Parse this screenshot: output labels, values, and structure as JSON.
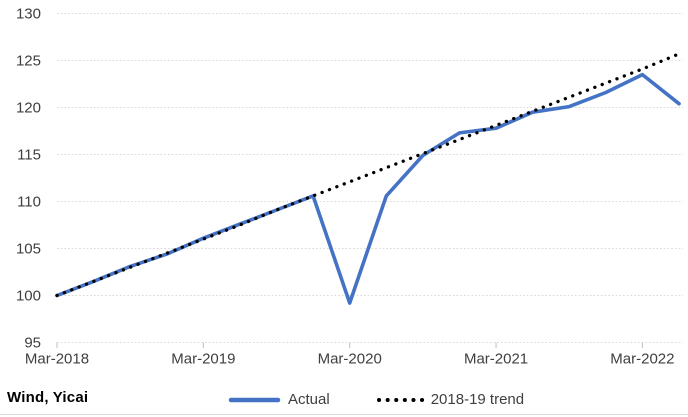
{
  "source": {
    "label": "Wind, Yicai"
  },
  "legend": {
    "actual_label": "Actual",
    "trend_label": "2018-19 trend"
  },
  "colors": {
    "actual": "#4472C4",
    "trend": "#000000",
    "gridline": "#D9D9D9",
    "tick_mark": "#BFBFBF",
    "axis_text": "#3F3F3F"
  },
  "chart_data": {
    "type": "line",
    "x": [
      "Mar-2018",
      "Jun-2018",
      "Sep-2018",
      "Dec-2018",
      "Mar-2019",
      "Jun-2019",
      "Sep-2019",
      "Dec-2019",
      "Mar-2020",
      "Jun-2020",
      "Sep-2020",
      "Dec-2020",
      "Mar-2021",
      "Jun-2021",
      "Sep-2021",
      "Dec-2021",
      "Mar-2022",
      "Jun-2022"
    ],
    "series": [
      {
        "name": "Actual",
        "color": "#4472C4",
        "style": "solid",
        "values": [
          100,
          101.5,
          103.1,
          104.4,
          106.1,
          107.6,
          109.1,
          110.6,
          99.2,
          110.6,
          114.9,
          117.3,
          117.8,
          119.5,
          120.1,
          121.6,
          123.5,
          120.4
        ]
      },
      {
        "name": "2018-19 trend",
        "color": "#000000",
        "style": "dotted",
        "values": [
          100,
          101.5,
          103.0,
          104.5,
          106.0,
          107.5,
          109.1,
          110.6,
          112.1,
          113.6,
          115.1,
          116.6,
          118.1,
          119.6,
          121.1,
          122.6,
          124.1,
          125.7
        ]
      }
    ],
    "ylim": [
      95,
      130
    ],
    "yticks": [
      95,
      100,
      105,
      110,
      115,
      120,
      125,
      130
    ],
    "xticks": [
      "Mar-2018",
      "Mar-2019",
      "Mar-2020",
      "Mar-2021",
      "Mar-2022"
    ],
    "grid": true,
    "legend_position": "bottom"
  }
}
